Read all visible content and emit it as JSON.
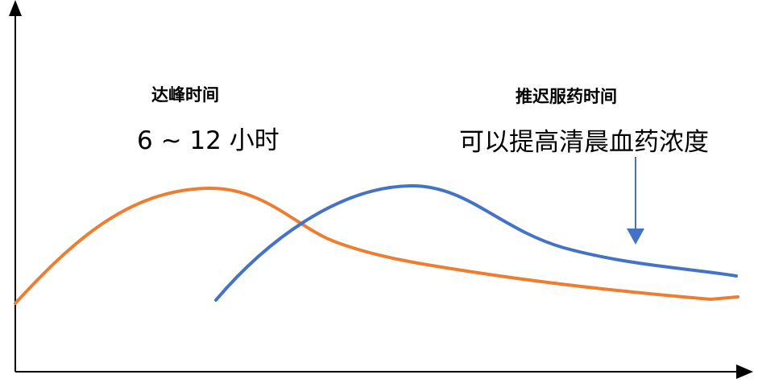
{
  "colors": {
    "orange_curve": "#ED7D31",
    "blue_curve": "#4472C4",
    "axis": "#000000"
  },
  "labels": {
    "left_title": "达峰时间",
    "left_sub": "6 ~ 12 小时",
    "right_title": "推迟服药时间",
    "right_sub": "可以提高清晨血药浓度"
  }
}
